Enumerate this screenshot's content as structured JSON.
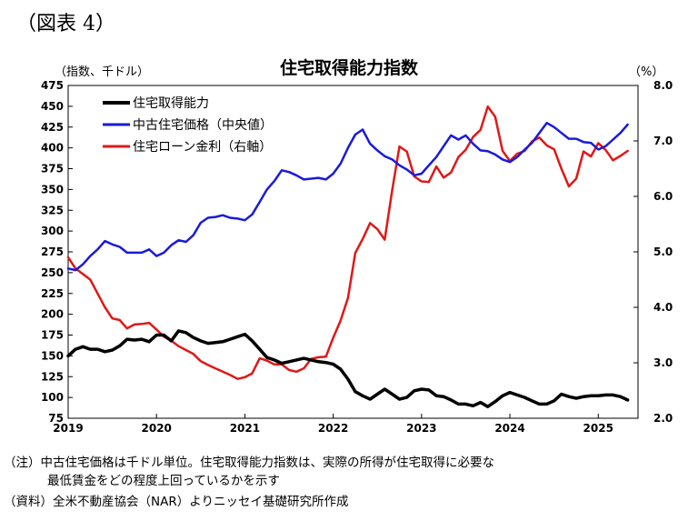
{
  "figure_label": "（図表 4）",
  "notes": {
    "line1": "（注）中古住宅価格は千ドル単位。住宅取得能力指数は、実際の所得が住宅取得に必要な",
    "line2": "最低賃金をどの程度上回っているかを示す",
    "line3": "（資料）全米不動産協会（NAR）よりニッセイ基礎研究所作成"
  },
  "colors": {
    "affordability": "#000000",
    "price": "#1a1adb",
    "rate": "#e01818"
  },
  "chart_data": {
    "type": "line",
    "title": "住宅取得能力指数",
    "ylabel_left": "（指数、千ドル）",
    "ylabel_right": "（%）",
    "xlabel": "",
    "x_ticks": [
      "2019",
      "2020",
      "2021",
      "2022",
      "2023",
      "2024",
      "2025"
    ],
    "x_range": [
      2019.0,
      2025.45
    ],
    "ylim_left": [
      75,
      475
    ],
    "ylim_right": [
      2.0,
      8.0
    ],
    "y_ticks_left": [
      75,
      100,
      125,
      150,
      175,
      200,
      225,
      250,
      275,
      300,
      325,
      350,
      375,
      400,
      425,
      450,
      475
    ],
    "y_ticks_right": [
      "2.0",
      "3.0",
      "4.0",
      "5.0",
      "6.0",
      "7.0",
      "8.0"
    ],
    "legend_position": "top-left",
    "grid": false,
    "series": [
      {
        "name": "住宅取得能力",
        "axis": "left",
        "color_key": "affordability",
        "x": [
          2019.0,
          2019.083,
          2019.167,
          2019.25,
          2019.333,
          2019.417,
          2019.5,
          2019.583,
          2019.667,
          2019.75,
          2019.833,
          2019.917,
          2020.0,
          2020.083,
          2020.167,
          2020.25,
          2020.333,
          2020.417,
          2020.5,
          2020.583,
          2020.667,
          2020.75,
          2020.833,
          2020.917,
          2021.0,
          2021.083,
          2021.167,
          2021.25,
          2021.333,
          2021.417,
          2021.5,
          2021.583,
          2021.667,
          2021.75,
          2021.833,
          2021.917,
          2022.0,
          2022.083,
          2022.167,
          2022.25,
          2022.333,
          2022.417,
          2022.5,
          2022.583,
          2022.667,
          2022.75,
          2022.833,
          2022.917,
          2023.0,
          2023.083,
          2023.167,
          2023.25,
          2023.333,
          2023.417,
          2023.5,
          2023.583,
          2023.667,
          2023.75,
          2023.833,
          2023.917,
          2024.0,
          2024.083,
          2024.167,
          2024.25,
          2024.333,
          2024.417,
          2024.5,
          2024.583,
          2024.667,
          2024.75,
          2024.833,
          2024.917,
          2025.0,
          2025.083,
          2025.167,
          2025.25,
          2025.333
        ],
        "values": [
          150,
          158,
          161,
          158,
          158,
          155,
          157,
          162,
          170,
          169,
          170,
          167,
          175,
          175,
          168,
          180,
          178,
          172,
          168,
          165,
          166,
          167,
          170,
          173,
          176,
          168,
          158,
          148,
          145,
          141,
          143,
          145,
          147,
          145,
          143,
          142,
          140,
          134,
          122,
          107,
          102,
          98,
          104,
          110,
          104,
          98,
          100,
          108,
          110,
          109,
          102,
          101,
          97,
          92,
          92,
          90,
          94,
          89,
          95,
          102,
          106,
          103,
          100,
          96,
          92,
          92,
          96,
          104,
          101,
          99,
          101,
          102,
          102,
          103,
          103,
          101,
          97
        ]
      },
      {
        "name": "中古住宅価格（中央値）",
        "axis": "left",
        "color_key": "price",
        "x": [
          2019.0,
          2019.083,
          2019.167,
          2019.25,
          2019.333,
          2019.417,
          2019.5,
          2019.583,
          2019.667,
          2019.75,
          2019.833,
          2019.917,
          2020.0,
          2020.083,
          2020.167,
          2020.25,
          2020.333,
          2020.417,
          2020.5,
          2020.583,
          2020.667,
          2020.75,
          2020.833,
          2020.917,
          2021.0,
          2021.083,
          2021.167,
          2021.25,
          2021.333,
          2021.417,
          2021.5,
          2021.583,
          2021.667,
          2021.75,
          2021.833,
          2021.917,
          2022.0,
          2022.083,
          2022.167,
          2022.25,
          2022.333,
          2022.417,
          2022.5,
          2022.583,
          2022.667,
          2022.75,
          2022.833,
          2022.917,
          2023.0,
          2023.083,
          2023.167,
          2023.25,
          2023.333,
          2023.417,
          2023.5,
          2023.583,
          2023.667,
          2023.75,
          2023.833,
          2023.917,
          2024.0,
          2024.083,
          2024.167,
          2024.25,
          2024.333,
          2024.417,
          2024.5,
          2024.583,
          2024.667,
          2024.75,
          2024.833,
          2024.917,
          2025.0,
          2025.083,
          2025.167,
          2025.25,
          2025.333
        ],
        "values": [
          255,
          253,
          260,
          270,
          278,
          288,
          284,
          281,
          274,
          274,
          274,
          278,
          270,
          274,
          283,
          289,
          287,
          295,
          310,
          316,
          317,
          319,
          316,
          315,
          313,
          320,
          335,
          350,
          360,
          373,
          371,
          367,
          362,
          363,
          364,
          362,
          369,
          381,
          400,
          416,
          422,
          405,
          397,
          390,
          386,
          379,
          374,
          367,
          369,
          379,
          389,
          402,
          415,
          410,
          415,
          405,
          397,
          396,
          392,
          386,
          383,
          389,
          398,
          406,
          418,
          430,
          425,
          418,
          411,
          411,
          407,
          406,
          398,
          402,
          410,
          418,
          428
        ]
      },
      {
        "name": "住宅ローン金利（右軸）",
        "axis": "right",
        "color_key": "rate",
        "x": [
          2019.0,
          2019.083,
          2019.167,
          2019.25,
          2019.333,
          2019.417,
          2019.5,
          2019.583,
          2019.667,
          2019.75,
          2019.833,
          2019.917,
          2020.0,
          2020.083,
          2020.167,
          2020.25,
          2020.333,
          2020.417,
          2020.5,
          2020.583,
          2020.667,
          2020.75,
          2020.833,
          2020.917,
          2021.0,
          2021.083,
          2021.167,
          2021.25,
          2021.333,
          2021.417,
          2021.5,
          2021.583,
          2021.667,
          2021.75,
          2021.833,
          2021.917,
          2022.0,
          2022.083,
          2022.167,
          2022.25,
          2022.333,
          2022.417,
          2022.5,
          2022.583,
          2022.667,
          2022.75,
          2022.833,
          2022.917,
          2023.0,
          2023.083,
          2023.167,
          2023.25,
          2023.333,
          2023.417,
          2023.5,
          2023.583,
          2023.667,
          2023.75,
          2023.833,
          2023.917,
          2024.0,
          2024.083,
          2024.167,
          2024.25,
          2024.333,
          2024.417,
          2024.5,
          2024.583,
          2024.667,
          2024.75,
          2024.833,
          2024.917,
          2025.0,
          2025.083,
          2025.167,
          2025.25,
          2025.333
        ],
        "values": [
          4.9,
          4.7,
          4.6,
          4.5,
          4.25,
          4.0,
          3.8,
          3.77,
          3.62,
          3.69,
          3.7,
          3.72,
          3.6,
          3.47,
          3.4,
          3.3,
          3.23,
          3.16,
          3.03,
          2.96,
          2.9,
          2.84,
          2.78,
          2.71,
          2.74,
          2.81,
          3.08,
          3.04,
          2.97,
          2.97,
          2.87,
          2.84,
          2.9,
          3.07,
          3.1,
          3.11,
          3.45,
          3.76,
          4.17,
          4.98,
          5.23,
          5.52,
          5.41,
          5.22,
          6.11,
          6.9,
          6.81,
          6.36,
          6.27,
          6.26,
          6.54,
          6.34,
          6.43,
          6.71,
          6.84,
          7.07,
          7.2,
          7.62,
          7.44,
          6.82,
          6.64,
          6.77,
          6.82,
          6.99,
          7.06,
          6.92,
          6.85,
          6.5,
          6.18,
          6.32,
          6.81,
          6.72,
          6.96,
          6.84,
          6.65,
          6.73,
          6.82
        ]
      }
    ]
  }
}
